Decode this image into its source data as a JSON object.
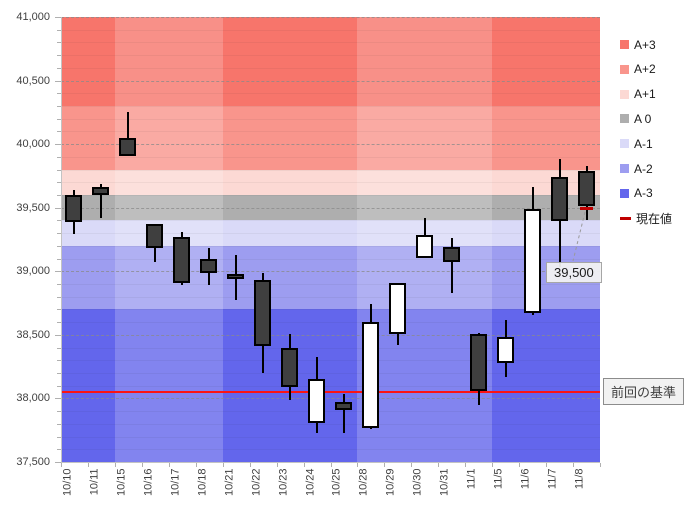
{
  "chart_data": {
    "type": "candlestick",
    "y_axis": {
      "min": 37500,
      "max": 41000,
      "major_interval": 500,
      "minor_interval": 100,
      "ticks": [
        {
          "value": 41000,
          "label": "41,000"
        },
        {
          "value": 40500,
          "label": "40,500"
        },
        {
          "value": 40000,
          "label": "40,000"
        },
        {
          "value": 39500,
          "label": "39,500"
        },
        {
          "value": 39000,
          "label": "39,000"
        },
        {
          "value": 38500,
          "label": "38,500"
        },
        {
          "value": 38000,
          "label": "38,000"
        },
        {
          "value": 37500,
          "label": "37,500"
        }
      ]
    },
    "series": [
      {
        "date": "10/10",
        "open": 39600,
        "high": 39640,
        "low": 39290,
        "close": 39385
      },
      {
        "date": "10/11",
        "open": 39660,
        "high": 39690,
        "low": 39420,
        "close": 39600
      },
      {
        "date": "10/15",
        "open": 40050,
        "high": 40250,
        "low": 39905,
        "close": 39910
      },
      {
        "date": "10/16",
        "open": 39370,
        "high": 39375,
        "low": 39075,
        "close": 39180
      },
      {
        "date": "10/17",
        "open": 39270,
        "high": 39310,
        "low": 38890,
        "close": 38905
      },
      {
        "date": "10/18",
        "open": 39100,
        "high": 39180,
        "low": 38895,
        "close": 38985
      },
      {
        "date": "10/21",
        "open": 38975,
        "high": 39130,
        "low": 38775,
        "close": 38950
      },
      {
        "date": "10/22",
        "open": 38930,
        "high": 38985,
        "low": 38200,
        "close": 38410
      },
      {
        "date": "10/23",
        "open": 38400,
        "high": 38510,
        "low": 37990,
        "close": 38090
      },
      {
        "date": "10/24",
        "open": 37810,
        "high": 38325,
        "low": 37725,
        "close": 38150
      },
      {
        "date": "10/25",
        "open": 37970,
        "high": 38035,
        "low": 37725,
        "close": 37910
      },
      {
        "date": "10/28",
        "open": 37765,
        "high": 38740,
        "low": 37760,
        "close": 38605
      },
      {
        "date": "10/29",
        "open": 38510,
        "high": 38905,
        "low": 38420,
        "close": 38905
      },
      {
        "date": "10/30",
        "open": 39105,
        "high": 39420,
        "low": 39105,
        "close": 39285
      },
      {
        "date": "10/31",
        "open": 39190,
        "high": 39260,
        "low": 38830,
        "close": 39075
      },
      {
        "date": "11/1",
        "open": 38510,
        "high": 38515,
        "low": 37950,
        "close": 38060
      },
      {
        "date": "11/5",
        "open": 38280,
        "high": 38620,
        "low": 38165,
        "close": 38485
      },
      {
        "date": "11/6",
        "open": 38675,
        "high": 39660,
        "low": 38660,
        "close": 39490
      },
      {
        "date": "11/7",
        "open": 39745,
        "high": 39880,
        "low": 39030,
        "close": 39395
      },
      {
        "date": "11/8",
        "open": 39785,
        "high": 39830,
        "low": 39405,
        "close": 39515
      }
    ],
    "bands": [
      {
        "label": "A+3",
        "from": 40300,
        "to": 41000,
        "color": "#f7756b"
      },
      {
        "label": "A+2",
        "from": 39800,
        "to": 40300,
        "color": "#f9958c"
      },
      {
        "label": "A+1",
        "from": 39600,
        "to": 39800,
        "color": "#fcd9d4"
      },
      {
        "label": "A 0",
        "from": 39400,
        "to": 39600,
        "color": "#aeaeae"
      },
      {
        "label": "A-1",
        "from": 39200,
        "to": 39400,
        "color": "#dadaf8"
      },
      {
        "label": "A-2",
        "from": 38700,
        "to": 39200,
        "color": "#9d9df0"
      },
      {
        "label": "A-3",
        "from": 37500,
        "to": 38700,
        "color": "#6366ec"
      }
    ],
    "lighter_week_columns": [
      {
        "start": 2,
        "end": 5
      },
      {
        "start": 11,
        "end": 15
      }
    ],
    "baseline": {
      "label": "前回の基準",
      "value": 38050,
      "color": "#fb1414"
    },
    "current_value": {
      "label": "現在値",
      "value": 39500,
      "display": "39,500",
      "color": "#c00000",
      "column": 19
    },
    "candle_colors": {
      "up_fill": "#ffffff",
      "down_fill": "#3f3f3f",
      "outline": "#000000"
    }
  },
  "legend": {
    "items": [
      {
        "label": "A+3",
        "color": "#f7756b",
        "type": "swatch"
      },
      {
        "label": "A+2",
        "color": "#f9958c",
        "type": "swatch"
      },
      {
        "label": "A+1",
        "color": "#fcd9d4",
        "type": "swatch"
      },
      {
        "label": "A 0",
        "color": "#aeaeae",
        "type": "swatch"
      },
      {
        "label": "A-1",
        "color": "#dadaf8",
        "type": "swatch"
      },
      {
        "label": "A-2",
        "color": "#9d9df0",
        "type": "swatch"
      },
      {
        "label": "A-3",
        "color": "#6366ec",
        "type": "swatch"
      },
      {
        "label": "現在値",
        "color": "#c00000",
        "type": "dash"
      }
    ]
  },
  "callout": {
    "value": "39,500"
  }
}
